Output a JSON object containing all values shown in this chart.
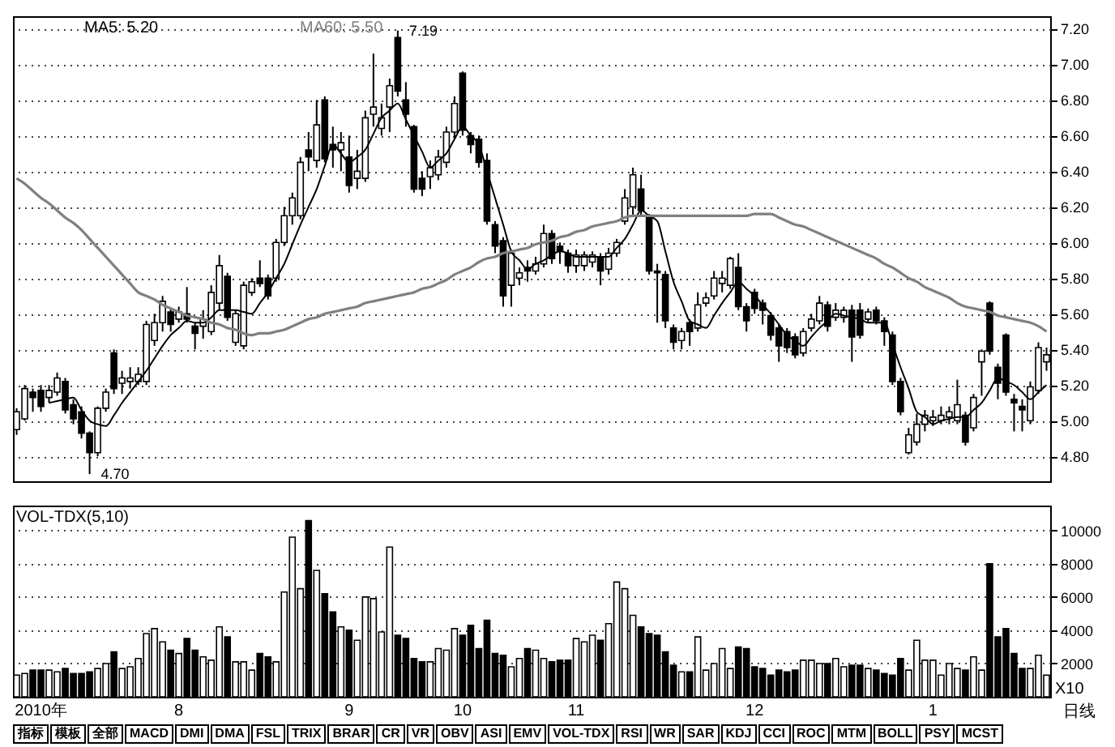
{
  "chart_data": [
    {
      "type": "candlestick",
      "categories": [
        null,
        null,
        null,
        null,
        null,
        null,
        null,
        null,
        null,
        null,
        null,
        null,
        null,
        null,
        null,
        null,
        null,
        null,
        null,
        null,
        null,
        null,
        null,
        null,
        null,
        null,
        null,
        null,
        null,
        null,
        null,
        null,
        null,
        null,
        null,
        null,
        null,
        null,
        null,
        null,
        null,
        null,
        null,
        null,
        null,
        null,
        null,
        null,
        null,
        null,
        null,
        null,
        null,
        null,
        null,
        null,
        null,
        null,
        null,
        null,
        null,
        null,
        null,
        null,
        null,
        null,
        null,
        null,
        null,
        null,
        null,
        null,
        null,
        null,
        null,
        null,
        null,
        null,
        null,
        null,
        null,
        null,
        null,
        null,
        null,
        null,
        null,
        null,
        null,
        null,
        null,
        null,
        null,
        null,
        null,
        null,
        null,
        null,
        null,
        null,
        null,
        null,
        null,
        null,
        null,
        null,
        null,
        null,
        null,
        null,
        null,
        null,
        null,
        null,
        null,
        null,
        null,
        null,
        null,
        null,
        null,
        null,
        null,
        null,
        null,
        null,
        null,
        null
      ],
      "ohlc": [
        [
          4.95,
          5.07,
          4.92,
          5.05
        ],
        [
          5.01,
          5.2,
          5.0,
          5.18
        ],
        [
          5.16,
          5.18,
          5.05,
          5.13
        ],
        [
          5.17,
          5.2,
          5.05,
          5.08
        ],
        [
          5.13,
          5.2,
          5.1,
          5.17
        ],
        [
          5.16,
          5.27,
          5.14,
          5.24
        ],
        [
          5.22,
          5.24,
          5.04,
          5.06
        ],
        [
          5.09,
          5.12,
          4.98,
          5.01
        ],
        [
          5.05,
          5.08,
          4.9,
          4.93
        ],
        [
          4.93,
          4.94,
          4.7,
          4.82
        ],
        [
          4.82,
          5.08,
          4.8,
          5.07
        ],
        [
          5.07,
          5.18,
          5.05,
          5.16
        ],
        [
          5.38,
          5.4,
          5.15,
          5.18
        ],
        [
          5.21,
          5.28,
          5.15,
          5.24
        ],
        [
          5.22,
          5.3,
          5.18,
          5.24
        ],
        [
          5.22,
          5.3,
          5.2,
          5.26
        ],
        [
          5.22,
          5.56,
          5.2,
          5.54
        ],
        [
          5.45,
          5.6,
          5.42,
          5.55
        ],
        [
          5.55,
          5.7,
          5.5,
          5.67
        ],
        [
          5.61,
          5.63,
          5.5,
          5.54
        ],
        [
          5.57,
          5.64,
          5.55,
          5.61
        ],
        [
          5.6,
          5.75,
          5.55,
          5.57
        ],
        [
          5.53,
          5.55,
          5.4,
          5.49
        ],
        [
          5.53,
          5.62,
          5.46,
          5.57
        ],
        [
          5.5,
          5.76,
          5.48,
          5.72
        ],
        [
          5.66,
          5.93,
          5.62,
          5.87
        ],
        [
          5.81,
          5.83,
          5.56,
          5.58
        ],
        [
          5.44,
          5.62,
          5.42,
          5.6
        ],
        [
          5.42,
          5.78,
          5.4,
          5.76
        ],
        [
          5.72,
          5.8,
          5.7,
          5.78
        ],
        [
          5.8,
          5.9,
          5.75,
          5.77
        ],
        [
          5.8,
          5.82,
          5.68,
          5.7
        ],
        [
          5.8,
          6.02,
          5.78,
          6.0
        ],
        [
          6.0,
          6.2,
          5.98,
          6.15
        ],
        [
          6.15,
          6.28,
          6.1,
          6.25
        ],
        [
          6.15,
          6.48,
          6.13,
          6.45
        ],
        [
          6.52,
          6.62,
          6.4,
          6.48
        ],
        [
          6.46,
          6.8,
          6.42,
          6.66
        ],
        [
          6.8,
          6.82,
          6.45,
          6.47
        ],
        [
          6.55,
          6.65,
          6.42,
          6.52
        ],
        [
          6.52,
          6.62,
          6.4,
          6.56
        ],
        [
          6.48,
          6.6,
          6.28,
          6.32
        ],
        [
          6.36,
          6.52,
          6.3,
          6.4
        ],
        [
          6.36,
          6.74,
          6.34,
          6.7
        ],
        [
          6.72,
          7.06,
          6.65,
          6.76
        ],
        [
          6.64,
          6.78,
          6.6,
          6.7
        ],
        [
          6.76,
          6.92,
          6.62,
          6.88
        ],
        [
          7.15,
          7.19,
          6.82,
          6.85
        ],
        [
          6.8,
          6.9,
          6.65,
          6.72
        ],
        [
          6.65,
          6.66,
          6.28,
          6.3
        ],
        [
          6.36,
          6.4,
          6.26,
          6.3
        ],
        [
          6.37,
          6.46,
          6.3,
          6.42
        ],
        [
          6.38,
          6.52,
          6.35,
          6.48
        ],
        [
          6.45,
          6.65,
          6.42,
          6.62
        ],
        [
          6.62,
          6.82,
          6.58,
          6.78
        ],
        [
          6.95,
          6.96,
          6.6,
          6.63
        ],
        [
          6.6,
          6.62,
          6.5,
          6.55
        ],
        [
          6.58,
          6.6,
          6.42,
          6.45
        ],
        [
          6.46,
          6.5,
          6.1,
          6.12
        ],
        [
          6.1,
          6.12,
          5.94,
          5.98
        ],
        [
          6.01,
          6.03,
          5.64,
          5.7
        ],
        [
          5.76,
          5.96,
          5.64,
          5.94
        ],
        [
          5.8,
          5.86,
          5.76,
          5.83
        ],
        [
          5.86,
          5.9,
          5.78,
          5.84
        ],
        [
          5.84,
          5.92,
          5.82,
          5.88
        ],
        [
          5.88,
          6.1,
          5.86,
          6.05
        ],
        [
          6.05,
          6.07,
          5.88,
          5.91
        ],
        [
          5.98,
          6.0,
          5.88,
          5.95
        ],
        [
          5.94,
          5.96,
          5.83,
          5.87
        ],
        [
          5.87,
          5.96,
          5.83,
          5.93
        ],
        [
          5.87,
          5.95,
          5.84,
          5.93
        ],
        [
          5.89,
          5.95,
          5.86,
          5.93
        ],
        [
          5.92,
          5.94,
          5.76,
          5.84
        ],
        [
          5.85,
          5.97,
          5.82,
          5.94
        ],
        [
          5.94,
          6.02,
          5.92,
          6.0
        ],
        [
          6.12,
          6.3,
          6.1,
          6.25
        ],
        [
          6.2,
          6.42,
          6.15,
          6.38
        ],
        [
          6.3,
          6.38,
          6.15,
          6.18
        ],
        [
          6.14,
          6.16,
          5.82,
          5.84
        ],
        [
          5.84,
          5.88,
          5.55,
          5.83
        ],
        [
          5.82,
          5.84,
          5.52,
          5.56
        ],
        [
          5.52,
          5.54,
          5.4,
          5.44
        ],
        [
          5.45,
          5.52,
          5.4,
          5.5
        ],
        [
          5.55,
          5.57,
          5.42,
          5.5
        ],
        [
          5.52,
          5.72,
          5.5,
          5.65
        ],
        [
          5.66,
          5.72,
          5.64,
          5.69
        ],
        [
          5.7,
          5.84,
          5.68,
          5.8
        ],
        [
          5.77,
          5.84,
          5.72,
          5.8
        ],
        [
          5.76,
          5.92,
          5.74,
          5.91
        ],
        [
          5.86,
          5.94,
          5.62,
          5.64
        ],
        [
          5.64,
          5.66,
          5.5,
          5.56
        ],
        [
          5.72,
          5.74,
          5.6,
          5.63
        ],
        [
          5.66,
          5.68,
          5.54,
          5.62
        ],
        [
          5.59,
          5.61,
          5.45,
          5.48
        ],
        [
          5.52,
          5.54,
          5.33,
          5.42
        ],
        [
          5.5,
          5.52,
          5.38,
          5.41
        ],
        [
          5.47,
          5.49,
          5.35,
          5.37
        ],
        [
          5.38,
          5.52,
          5.36,
          5.5
        ],
        [
          5.52,
          5.6,
          5.5,
          5.57
        ],
        [
          5.56,
          5.7,
          5.54,
          5.66
        ],
        [
          5.65,
          5.67,
          5.5,
          5.53
        ],
        [
          5.58,
          5.66,
          5.56,
          5.62
        ],
        [
          5.58,
          5.64,
          5.55,
          5.62
        ],
        [
          5.62,
          5.65,
          5.33,
          5.47
        ],
        [
          5.62,
          5.66,
          5.46,
          5.48
        ],
        [
          5.57,
          5.63,
          5.55,
          5.61
        ],
        [
          5.62,
          5.64,
          5.54,
          5.56
        ],
        [
          5.56,
          5.58,
          5.42,
          5.5
        ],
        [
          5.48,
          5.5,
          5.2,
          5.22
        ],
        [
          5.22,
          5.24,
          5.03,
          5.05
        ],
        [
          4.82,
          4.96,
          4.81,
          4.92
        ],
        [
          4.88,
          5.04,
          4.86,
          4.98
        ],
        [
          4.98,
          5.06,
          4.94,
          5.03
        ],
        [
          5.0,
          5.06,
          4.97,
          5.02
        ],
        [
          5.0,
          5.08,
          4.98,
          5.03
        ],
        [
          5.02,
          5.08,
          4.98,
          5.05
        ],
        [
          5.0,
          5.23,
          4.98,
          5.09
        ],
        [
          5.03,
          5.05,
          4.86,
          4.88
        ],
        [
          4.96,
          5.15,
          4.94,
          5.13
        ],
        [
          5.33,
          5.4,
          5.14,
          5.39
        ],
        [
          5.66,
          5.67,
          5.37,
          5.39
        ],
        [
          5.3,
          5.32,
          5.12,
          5.21
        ],
        [
          5.48,
          5.49,
          5.14,
          5.16
        ],
        [
          5.12,
          5.15,
          4.94,
          5.1
        ],
        [
          5.08,
          5.12,
          4.94,
          5.06
        ],
        [
          5.0,
          5.22,
          4.98,
          5.19
        ],
        [
          5.17,
          5.44,
          5.15,
          5.41
        ],
        [
          5.33,
          5.41,
          5.28,
          5.37
        ]
      ],
      "series": [
        {
          "name": "MA5: 5.20",
          "type": "line",
          "color": "#000000",
          "values": [
            null,
            null,
            null,
            null,
            5.1,
            5.11,
            5.12,
            5.13,
            5.06,
            5.0,
            4.98,
            4.97,
            5.03,
            5.1,
            5.16,
            5.22,
            5.28,
            5.35,
            5.42,
            5.48,
            5.52,
            5.56,
            5.55,
            5.55,
            5.58,
            5.62,
            5.62,
            5.62,
            5.61,
            5.6,
            5.66,
            5.72,
            5.8,
            5.88,
            5.99,
            6.1,
            6.2,
            6.3,
            6.43,
            6.55,
            6.5,
            6.45,
            6.48,
            6.52,
            6.61,
            6.7,
            6.74,
            6.78,
            6.69,
            6.6,
            6.51,
            6.42,
            6.46,
            6.5,
            6.58,
            6.65,
            6.6,
            6.55,
            6.4,
            6.25,
            6.1,
            5.95,
            5.9,
            5.85,
            5.88,
            5.9,
            5.93,
            5.95,
            5.94,
            5.92,
            5.92,
            5.92,
            5.92,
            5.92,
            5.97,
            6.02,
            6.1,
            6.18,
            6.15,
            6.12,
            5.95,
            5.78,
            5.67,
            5.56,
            5.54,
            5.52,
            5.59,
            5.66,
            5.72,
            5.78,
            5.74,
            5.7,
            5.65,
            5.6,
            5.54,
            5.48,
            5.45,
            5.42,
            5.47,
            5.52,
            5.56,
            5.6,
            5.59,
            5.58,
            5.57,
            5.55,
            5.55,
            5.55,
            5.43,
            5.3,
            5.18,
            5.05,
            5.02,
            4.98,
            5.0,
            5.01,
            5.02,
            5.02,
            5.06,
            5.1,
            5.17,
            5.24,
            5.22,
            5.2,
            5.16,
            5.12,
            5.16,
            5.2
          ]
        },
        {
          "name": "MA60: 5.50",
          "type": "line",
          "color": "#808080",
          "values": [
            6.36,
            6.33,
            6.29,
            6.25,
            6.22,
            6.18,
            6.14,
            6.11,
            6.07,
            6.02,
            5.97,
            5.92,
            5.87,
            5.82,
            5.77,
            5.72,
            5.7,
            5.68,
            5.65,
            5.63,
            5.61,
            5.59,
            5.58,
            5.57,
            5.55,
            5.54,
            5.52,
            5.51,
            5.49,
            5.48,
            5.49,
            5.49,
            5.5,
            5.51,
            5.53,
            5.55,
            5.57,
            5.58,
            5.6,
            5.61,
            5.62,
            5.63,
            5.64,
            5.66,
            5.67,
            5.68,
            5.69,
            5.7,
            5.71,
            5.72,
            5.74,
            5.75,
            5.77,
            5.79,
            5.82,
            5.84,
            5.86,
            5.89,
            5.91,
            5.92,
            5.94,
            5.95,
            5.96,
            5.97,
            5.99,
            6.0,
            6.01,
            6.03,
            6.04,
            6.06,
            6.07,
            6.09,
            6.1,
            6.11,
            6.12,
            6.14,
            6.15,
            6.15,
            6.15,
            6.15,
            6.15,
            6.15,
            6.15,
            6.15,
            6.15,
            6.15,
            6.15,
            6.15,
            6.15,
            6.15,
            6.15,
            6.16,
            6.16,
            6.16,
            6.14,
            6.12,
            6.1,
            6.09,
            6.07,
            6.05,
            6.03,
            6.01,
            5.99,
            5.97,
            5.95,
            5.93,
            5.91,
            5.88,
            5.86,
            5.83,
            5.8,
            5.78,
            5.75,
            5.73,
            5.71,
            5.69,
            5.66,
            5.64,
            5.63,
            5.62,
            5.61,
            5.59,
            5.58,
            5.57,
            5.56,
            5.55,
            5.53,
            5.5
          ]
        }
      ],
      "ylim": [
        4.66,
        7.27
      ],
      "yticks": [
        {
          "value": 4.8,
          "label": "4.80"
        },
        {
          "value": 5,
          "label": "5.00"
        },
        {
          "value": 5.2,
          "label": "5.20"
        },
        {
          "value": 5.4,
          "label": "5.40"
        },
        {
          "value": 5.6,
          "label": "5.60"
        },
        {
          "value": 5.8,
          "label": "5.80"
        },
        {
          "value": 6,
          "label": "6.00"
        },
        {
          "value": 6.2,
          "label": "6.20"
        },
        {
          "value": 6.4,
          "label": "6.40"
        },
        {
          "value": 6.6,
          "label": "6.60"
        },
        {
          "value": 6.8,
          "label": "6.80"
        },
        {
          "value": 7,
          "label": "7.00"
        },
        {
          "value": 7.2,
          "label": "7.20"
        }
      ],
      "grid": "y",
      "tick_labels": "y",
      "annotations": [
        "7.19",
        "4.70"
      ]
    },
    {
      "type": "bar",
      "title": "VOL-TDX(5,10)",
      "categories": [
        null,
        null,
        null,
        "2010年",
        null,
        null,
        null,
        null,
        null,
        null,
        null,
        null,
        null,
        null,
        null,
        null,
        null,
        null,
        null,
        null,
        "8",
        null,
        null,
        null,
        null,
        null,
        null,
        null,
        null,
        null,
        null,
        null,
        null,
        null,
        null,
        null,
        null,
        null,
        null,
        null,
        null,
        "9",
        null,
        null,
        null,
        null,
        null,
        null,
        null,
        null,
        null,
        null,
        null,
        null,
        null,
        "10",
        null,
        null,
        null,
        null,
        null,
        null,
        null,
        null,
        null,
        null,
        null,
        null,
        null,
        "11",
        null,
        null,
        null,
        null,
        null,
        null,
        null,
        null,
        null,
        null,
        null,
        null,
        null,
        null,
        null,
        null,
        null,
        null,
        null,
        null,
        null,
        "12",
        null,
        null,
        null,
        null,
        null,
        null,
        null,
        null,
        null,
        null,
        null,
        null,
        null,
        null,
        null,
        null,
        null,
        null,
        null,
        null,
        null,
        "1",
        null,
        null,
        null,
        null,
        null,
        null,
        null,
        null,
        null,
        null,
        null,
        null,
        null,
        null
      ],
      "values": [
        1300,
        1400,
        1600,
        1600,
        1600,
        1500,
        1700,
        1400,
        1400,
        1500,
        1700,
        2000,
        2700,
        1700,
        1800,
        2300,
        3800,
        4100,
        3300,
        2800,
        2600,
        3500,
        2800,
        2400,
        2200,
        4200,
        3600,
        2100,
        2100,
        1600,
        2600,
        2400,
        2100,
        6300,
        9600,
        6500,
        10600,
        7600,
        6200,
        5100,
        4200,
        4000,
        3400,
        6000,
        5900,
        3900,
        9000,
        3700,
        3500,
        2300,
        2100,
        2100,
        2900,
        2800,
        4100,
        3700,
        4300,
        2900,
        4600,
        2600,
        2500,
        1800,
        2300,
        2900,
        2800,
        2300,
        2100,
        2200,
        2200,
        3500,
        3300,
        3700,
        3400,
        4400,
        6900,
        6500,
        4900,
        4200,
        3800,
        3700,
        2700,
        1900,
        1500,
        1500,
        3600,
        1600,
        2000,
        2900,
        1700,
        3000,
        2900,
        1800,
        1700,
        1300,
        1600,
        1500,
        1600,
        2200,
        2200,
        2000,
        2000,
        2300,
        1800,
        1900,
        1900,
        1700,
        1600,
        1400,
        1300,
        2300,
        1600,
        3400,
        2200,
        2200,
        1300,
        2000,
        1700,
        1600,
        2400,
        1600,
        8000,
        3600,
        4100,
        2600,
        1700,
        1700,
        2500,
        1300
      ],
      "colors": [
        "#ffffff",
        "#ffffff",
        "#000000",
        "#000000",
        "#ffffff",
        "#ffffff",
        "#000000",
        "#000000",
        "#000000",
        "#000000",
        "#ffffff",
        "#ffffff",
        "#000000",
        "#ffffff",
        "#ffffff",
        "#ffffff",
        "#ffffff",
        "#ffffff",
        "#ffffff",
        "#000000",
        "#ffffff",
        "#000000",
        "#000000",
        "#ffffff",
        "#ffffff",
        "#ffffff",
        "#000000",
        "#ffffff",
        "#ffffff",
        "#ffffff",
        "#000000",
        "#000000",
        "#ffffff",
        "#ffffff",
        "#ffffff",
        "#ffffff",
        "#000000",
        "#ffffff",
        "#000000",
        "#000000",
        "#ffffff",
        "#000000",
        "#ffffff",
        "#ffffff",
        "#ffffff",
        "#ffffff",
        "#ffffff",
        "#000000",
        "#000000",
        "#000000",
        "#000000",
        "#ffffff",
        "#ffffff",
        "#ffffff",
        "#ffffff",
        "#000000",
        "#000000",
        "#000000",
        "#000000",
        "#000000",
        "#000000",
        "#ffffff",
        "#ffffff",
        "#000000",
        "#ffffff",
        "#ffffff",
        "#000000",
        "#000000",
        "#000000",
        "#ffffff",
        "#ffffff",
        "#ffffff",
        "#000000",
        "#ffffff",
        "#ffffff",
        "#ffffff",
        "#ffffff",
        "#000000",
        "#000000",
        "#000000",
        "#000000",
        "#000000",
        "#ffffff",
        "#000000",
        "#ffffff",
        "#ffffff",
        "#ffffff",
        "#ffffff",
        "#ffffff",
        "#000000",
        "#000000",
        "#000000",
        "#000000",
        "#000000",
        "#000000",
        "#000000",
        "#000000",
        "#ffffff",
        "#ffffff",
        "#ffffff",
        "#000000",
        "#ffffff",
        "#ffffff",
        "#000000",
        "#000000",
        "#ffffff",
        "#000000",
        "#000000",
        "#000000",
        "#000000",
        "#ffffff",
        "#ffffff",
        "#ffffff",
        "#ffffff",
        "#ffffff",
        "#ffffff",
        "#ffffff",
        "#000000",
        "#ffffff",
        "#ffffff",
        "#000000",
        "#000000",
        "#000000",
        "#000000",
        "#000000",
        "#ffffff",
        "#ffffff",
        "#ffffff"
      ],
      "ylim": [
        0,
        11500
      ],
      "yticks": [
        2000,
        4000,
        6000,
        8000,
        10000
      ],
      "grid": "y",
      "annotations": [
        "X10",
        "日线",
        "指标",
        "模板",
        "全部",
        "MACD",
        "DMI",
        "DMA",
        "FSL",
        "TRIX",
        "BRAR",
        "CR",
        "VR",
        "OBV",
        "ASI",
        "EMV",
        "VOL-TDX",
        "RSI",
        "WR",
        "SAR",
        "KDJ",
        "CCI",
        "ROC",
        "MTM",
        "BOLL",
        "PSY",
        "MCST"
      ]
    }
  ]
}
